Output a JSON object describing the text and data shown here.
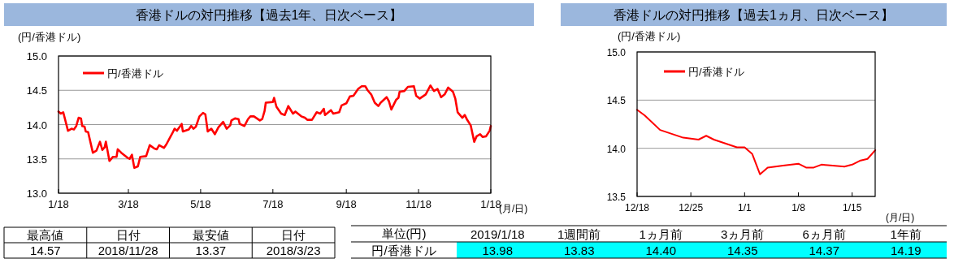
{
  "chart_data": [
    {
      "type": "line",
      "title": "香港ドルの対円推移【過去1年、日次ベース】",
      "ylabel": "(円/香港ドル)",
      "xlabel": "(月/日)",
      "x": [
        "2018-01-18",
        "2018-01-20",
        "2018-01-22",
        "2018-01-26",
        "2018-01-29",
        "2018-01-31",
        "2018-02-02",
        "2018-02-04",
        "2018-02-06",
        "2018-02-07",
        "2018-02-09",
        "2018-02-10",
        "2018-02-12",
        "2018-02-16",
        "2018-02-19",
        "2018-02-22",
        "2018-02-24",
        "2018-02-26",
        "2018-02-27",
        "2018-03-02",
        "2018-03-05",
        "2018-03-08",
        "2018-03-09",
        "2018-03-12",
        "2018-03-17",
        "2018-03-19",
        "2018-03-21",
        "2018-03-23",
        "2018-03-26",
        "2018-03-28",
        "2018-04-02",
        "2018-04-05",
        "2018-04-09",
        "2018-04-11",
        "2018-04-13",
        "2018-04-17",
        "2018-04-19",
        "2018-04-24",
        "2018-04-26",
        "2018-04-28",
        "2018-05-02",
        "2018-05-03",
        "2018-05-08",
        "2018-05-10",
        "2018-05-12",
        "2018-05-14",
        "2018-05-17",
        "2018-05-20",
        "2018-05-22",
        "2018-05-24",
        "2018-05-27",
        "2018-05-30",
        "2018-06-02",
        "2018-06-06",
        "2018-06-09",
        "2018-06-12",
        "2018-06-13",
        "2018-06-16",
        "2018-06-19",
        "2018-06-20",
        "2018-06-24",
        "2018-06-27",
        "2018-06-29",
        "2018-07-02",
        "2018-07-07",
        "2018-07-09",
        "2018-07-11",
        "2018-07-12",
        "2018-07-18",
        "2018-07-19",
        "2018-07-21",
        "2018-07-25",
        "2018-07-28",
        "2018-07-31",
        "2018-08-04",
        "2018-08-06",
        "2018-08-11",
        "2018-08-14",
        "2018-08-16",
        "2018-08-20",
        "2018-08-24",
        "2018-08-27",
        "2018-08-30",
        "2018-08-31",
        "2018-09-05",
        "2018-09-07",
        "2018-09-12",
        "2018-09-14",
        "2018-09-18",
        "2018-09-21",
        "2018-09-24",
        "2018-09-28",
        "2018-10-01",
        "2018-10-04",
        "2018-10-06",
        "2018-10-09",
        "2018-10-12",
        "2018-10-15",
        "2018-10-17",
        "2018-10-22",
        "2018-10-24",
        "2018-10-26",
        "2018-10-30",
        "2018-11-01",
        "2018-11-02",
        "2018-11-06",
        "2018-11-09",
        "2018-11-14",
        "2018-11-16",
        "2018-11-19",
        "2018-11-24",
        "2018-11-28",
        "2018-12-01",
        "2018-12-04",
        "2018-12-07",
        "2018-12-10",
        "2018-12-13",
        "2018-12-17",
        "2018-12-19",
        "2018-12-21",
        "2018-12-25",
        "2018-12-27",
        "2018-12-29",
        "2019-01-01",
        "2019-01-04",
        "2019-01-06",
        "2019-01-09",
        "2019-01-11",
        "2019-01-14",
        "2019-01-17",
        "2019-01-18"
      ],
      "series": [
        {
          "name": "円/香港ドル",
          "color": "#ff0000",
          "values": [
            14.19,
            14.16,
            14.18,
            13.91,
            13.94,
            13.93,
            13.98,
            14.1,
            14.09,
            13.98,
            13.97,
            13.9,
            13.89,
            13.59,
            13.62,
            13.75,
            13.63,
            13.67,
            13.75,
            13.47,
            13.53,
            13.53,
            13.64,
            13.59,
            13.52,
            13.5,
            13.56,
            13.37,
            13.39,
            13.53,
            13.54,
            13.7,
            13.65,
            13.64,
            13.7,
            13.66,
            13.71,
            13.87,
            13.94,
            13.91,
            14.01,
            13.9,
            13.93,
            13.98,
            13.94,
            13.97,
            14.12,
            14.17,
            14.15,
            13.9,
            13.94,
            13.86,
            13.96,
            14.04,
            13.94,
            13.99,
            14.06,
            14.09,
            14.08,
            14.01,
            13.98,
            14.08,
            14.12,
            14.12,
            14.06,
            14.08,
            14.2,
            14.32,
            14.33,
            14.39,
            14.26,
            14.16,
            14.14,
            14.27,
            14.16,
            14.19,
            14.12,
            14.1,
            14.07,
            14.07,
            14.18,
            14.16,
            14.23,
            14.14,
            14.21,
            14.16,
            14.18,
            14.28,
            14.31,
            14.41,
            14.42,
            14.52,
            14.56,
            14.56,
            14.5,
            14.44,
            14.32,
            14.27,
            14.32,
            14.4,
            14.34,
            14.22,
            14.36,
            14.39,
            14.48,
            14.49,
            14.55,
            14.56,
            14.42,
            14.38,
            14.44,
            14.57,
            14.49,
            14.52,
            14.4,
            14.44,
            14.54,
            14.48,
            14.38,
            14.18,
            14.1,
            14.14,
            14.07,
            13.99,
            13.75,
            13.83,
            13.86,
            13.82,
            13.83,
            13.91,
            13.98
          ]
        }
      ],
      "xlim": [
        "2018-01-18",
        "2019-01-18"
      ],
      "xticks": [
        {
          "value": "2018-01-18",
          "label": "1/18"
        },
        {
          "value": "2018-03-18",
          "label": "3/18"
        },
        {
          "value": "2018-05-18",
          "label": "5/18"
        },
        {
          "value": "2018-07-18",
          "label": "7/18"
        },
        {
          "value": "2018-09-18",
          "label": "9/18"
        },
        {
          "value": "2018-11-18",
          "label": "11/18"
        },
        {
          "value": "2019-01-18",
          "label": "1/18"
        }
      ],
      "ylim": [
        13,
        15
      ],
      "yticks": [
        {
          "value": 13,
          "label": "13.0"
        },
        {
          "value": 13.5,
          "label": "13.5"
        },
        {
          "value": 14,
          "label": "14.0"
        },
        {
          "value": 14.5,
          "label": "14.5"
        },
        {
          "value": 15,
          "label": "15.0"
        }
      ],
      "grid": "y",
      "legend": "top left"
    },
    {
      "type": "line",
      "title": "香港ドルの対円推移【過去1ヵ月、日次ベース】",
      "ylabel": "(円/香港ドル)",
      "xlabel": "(月/日)",
      "x": [
        "2018-12-18",
        "2018-12-19",
        "2018-12-21",
        "2018-12-24",
        "2018-12-25",
        "2018-12-26",
        "2018-12-27",
        "2018-12-28",
        "2018-12-31",
        "2019-01-01",
        "2019-01-02",
        "2019-01-03",
        "2019-01-04",
        "2019-01-06",
        "2019-01-08",
        "2019-01-09",
        "2019-01-10",
        "2019-01-11",
        "2019-01-14",
        "2019-01-15",
        "2019-01-16",
        "2019-01-17",
        "2019-01-18"
      ],
      "series": [
        {
          "name": "円/香港ドル",
          "color": "#ff0000",
          "values": [
            14.4,
            14.34,
            14.19,
            14.11,
            14.1,
            14.09,
            14.13,
            14.09,
            14.01,
            14.01,
            13.94,
            13.73,
            13.8,
            13.82,
            13.84,
            13.8,
            13.8,
            13.83,
            13.81,
            13.83,
            13.87,
            13.89,
            13.98
          ]
        }
      ],
      "xlim": [
        "2018-12-18",
        "2019-01-18"
      ],
      "xticks": [
        {
          "value": "2018-12-18",
          "label": "12/18"
        },
        {
          "value": "2018-12-25",
          "label": "12/25"
        },
        {
          "value": "2019-01-01",
          "label": "1/1"
        },
        {
          "value": "2019-01-08",
          "label": "1/8"
        },
        {
          "value": "2019-01-15",
          "label": "1/15"
        }
      ],
      "ylim": [
        13.5,
        15
      ],
      "yticks": [
        {
          "value": 13.5,
          "label": "13.5"
        },
        {
          "value": 14,
          "label": "14.0"
        },
        {
          "value": 14.5,
          "label": "14.5"
        },
        {
          "value": 15,
          "label": "15.0"
        }
      ],
      "grid": "y",
      "legend": "top left"
    },
    {
      "type": "other",
      "categories": [
        "最高値",
        "日付",
        "最安値",
        "日付"
      ],
      "values": [
        14.57,
        null,
        13.37,
        null
      ],
      "value_labels": [
        "14.57",
        "2018/11/28",
        "13.37",
        "2018/3/23"
      ]
    },
    {
      "type": "other",
      "legend_title": "単位(円)",
      "categories": [
        "2019/1/18",
        "1週間前",
        "1ヵ月前",
        "3ヵ月前",
        "6ヵ月前",
        "1年前"
      ],
      "series": [
        {
          "name": "円/香港ドル",
          "color": "#00ffff",
          "values": [
            13.98,
            13.83,
            14.4,
            14.35,
            14.37,
            14.19
          ],
          "value_labels": [
            "13.98",
            "13.83",
            "14.40",
            "14.35",
            "14.37",
            "14.19"
          ]
        }
      ]
    }
  ]
}
